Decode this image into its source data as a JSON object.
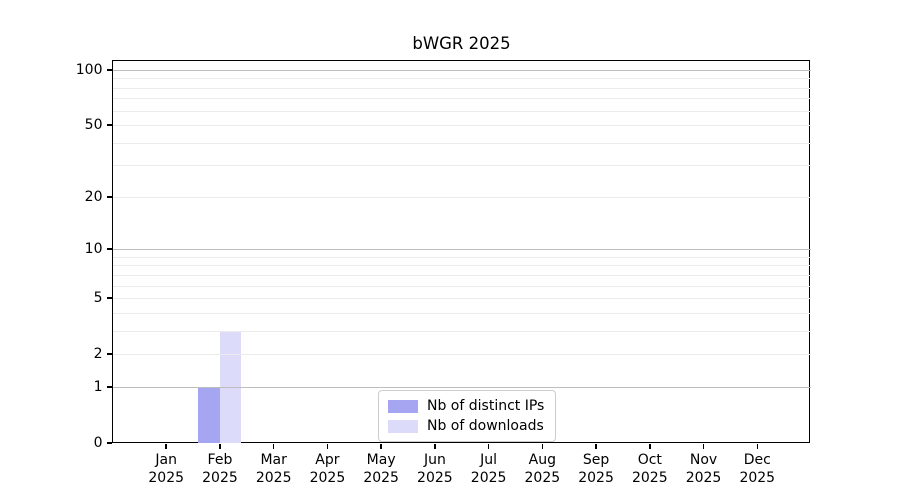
{
  "chart_data": {
    "type": "bar",
    "title": "bWGR 2025",
    "month_labels": [
      "Jan",
      "Feb",
      "Mar",
      "Apr",
      "May",
      "Jun",
      "Jul",
      "Aug",
      "Sep",
      "Oct",
      "Nov",
      "Dec"
    ],
    "year_labels": [
      "2025",
      "2025",
      "2025",
      "2025",
      "2025",
      "2025",
      "2025",
      "2025",
      "2025",
      "2025",
      "2025",
      "2025"
    ],
    "series": [
      {
        "name": "Nb of distinct IPs",
        "color": "#a5a5f2",
        "values": [
          0,
          1,
          0,
          0,
          0,
          0,
          0,
          0,
          0,
          0,
          0,
          0
        ]
      },
      {
        "name": "Nb of downloads",
        "color": "#dcdcfa",
        "values": [
          0,
          3,
          0,
          0,
          0,
          0,
          0,
          0,
          0,
          0,
          0,
          0
        ]
      }
    ],
    "y_scale": "log1p",
    "y_ticks": [
      0,
      1,
      2,
      5,
      10,
      20,
      50,
      100
    ],
    "ylim": [
      0,
      113
    ],
    "major_gridlines": [
      1,
      10,
      100
    ],
    "minor_gridlines": [
      2,
      3,
      4,
      5,
      6,
      7,
      8,
      9,
      20,
      30,
      40,
      50,
      60,
      70,
      80,
      90
    ],
    "grid": "on",
    "legend_position": "lower center"
  },
  "colors": {
    "spine": "#000000",
    "major_grid": "#bdbdbd",
    "minor_grid": "#ebebeb",
    "legend_border": "#cccccc",
    "background": "#ffffff"
  }
}
